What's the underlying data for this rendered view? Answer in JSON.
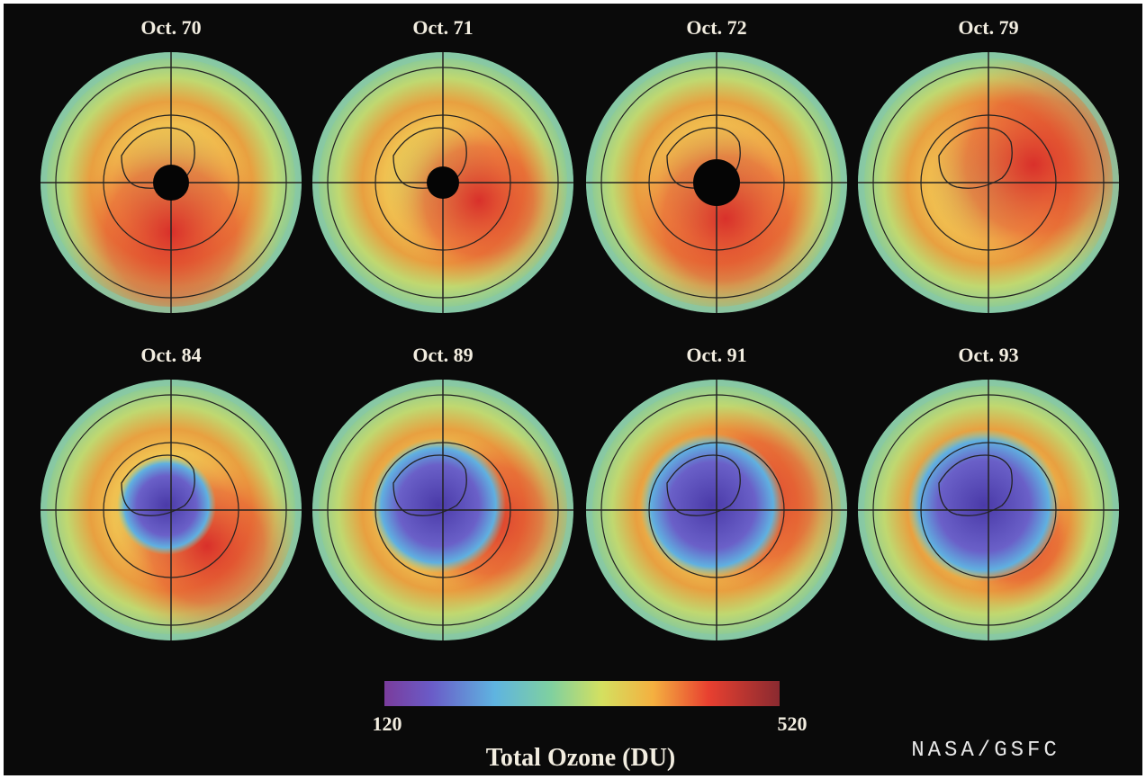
{
  "panels": [
    {
      "label": "Oct. 70"
    },
    {
      "label": "Oct. 71"
    },
    {
      "label": "Oct. 72"
    },
    {
      "label": "Oct. 79"
    },
    {
      "label": "Oct. 84"
    },
    {
      "label": "Oct. 89"
    },
    {
      "label": "Oct. 91"
    },
    {
      "label": "Oct. 93"
    }
  ],
  "colorbar": {
    "min": 120,
    "max": 520,
    "title": "Total Ozone (DU)"
  },
  "credit": "NASA/GSFC"
}
